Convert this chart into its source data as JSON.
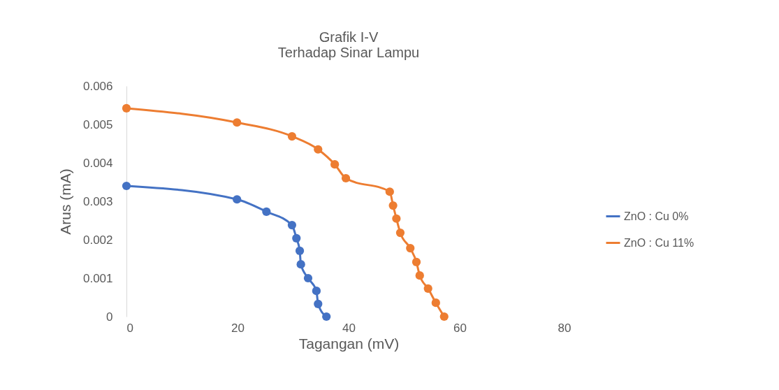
{
  "chart_data": {
    "type": "line",
    "title": "Grafik I-V",
    "subtitle": "Terhadap Sinar Lampu",
    "xlabel": "Tagangan (mV)",
    "ylabel": "Arus (mA)",
    "xlim": [
      0,
      80
    ],
    "xticks": [
      0,
      20,
      40,
      60,
      80
    ],
    "ylim": [
      0,
      0.006
    ],
    "yticks": [
      0,
      0.001,
      0.002,
      0.003,
      0.004,
      0.005,
      0.006
    ],
    "grid": false,
    "legend": "right",
    "marker": "circle",
    "series": [
      {
        "name": "ZnO : Cu 0%",
        "color": "#4472c4",
        "x": [
          0,
          19.9,
          25.2,
          29.8,
          30.6,
          31.2,
          31.4,
          32.7,
          34.2,
          34.5,
          36
        ],
        "values": [
          0.0034,
          0.00305,
          0.00273,
          0.00238,
          0.00204,
          0.00171,
          0.00136,
          0.001,
          0.00067,
          0.00033,
          0
        ]
      },
      {
        "name": "ZnO : Cu 11%",
        "color": "#ed7d31",
        "x": [
          0,
          19.9,
          29.8,
          34.5,
          37.5,
          39.5,
          47.4,
          48,
          48.6,
          49.3,
          51.1,
          52.2,
          52.8,
          54.3,
          55.7,
          57.2
        ],
        "values": [
          0.00542,
          0.00505,
          0.00469,
          0.00435,
          0.00396,
          0.0036,
          0.00325,
          0.00289,
          0.00255,
          0.00218,
          0.00178,
          0.00142,
          0.00107,
          0.00073,
          0.00036,
          0
        ]
      }
    ]
  }
}
